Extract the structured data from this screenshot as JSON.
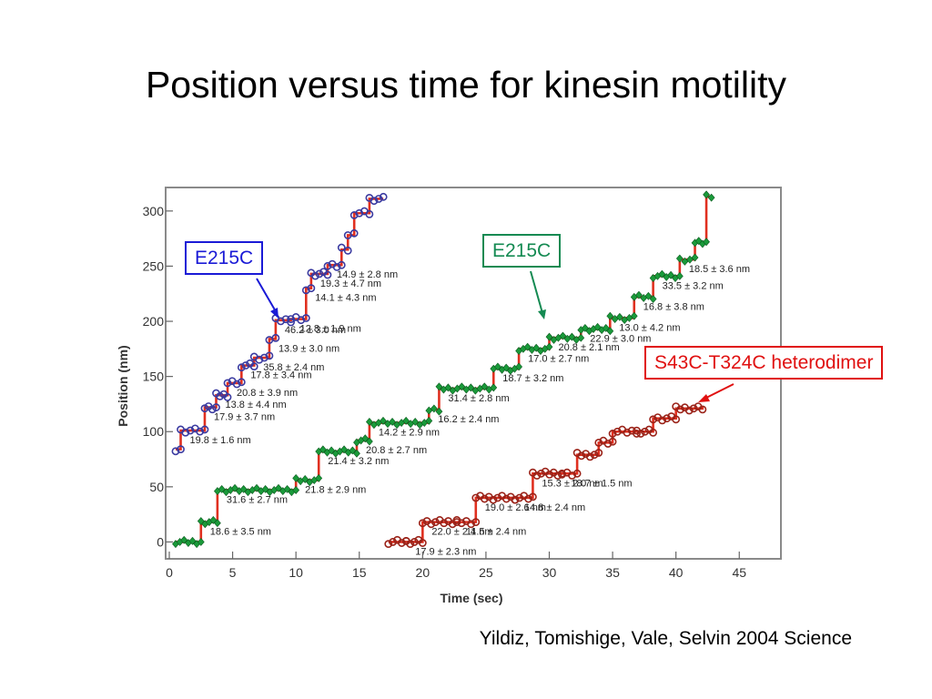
{
  "slide": {
    "title": "Position versus time for kinesin motility",
    "citation": "Yildiz, Tomishige, Vale, Selvin 2004 Science"
  },
  "callouts": [
    {
      "label": "E215C",
      "color": "#1a1ad6"
    },
    {
      "label": "E215C",
      "color": "#148a52"
    },
    {
      "label": "S43C-T324C heterodimer",
      "color": "#e01010"
    }
  ],
  "chart_data": {
    "type": "line",
    "xlabel": "Time (sec)",
    "ylabel": "Position (nm)",
    "xlim": [
      0,
      48
    ],
    "ylim": [
      -12,
      318
    ],
    "xticks": [
      0,
      5,
      10,
      15,
      20,
      25,
      30,
      35,
      40,
      45
    ],
    "yticks": [
      0,
      50,
      100,
      150,
      200,
      250,
      300
    ],
    "grid": false,
    "fit_color": "#e03020",
    "series": [
      {
        "marker": "circle",
        "color": "#3a3aa0",
        "steps": [
          [
            0.5,
            84
          ],
          [
            0.9,
            101
          ],
          [
            2.8,
            122
          ],
          [
            3.7,
            133
          ],
          [
            4.6,
            144
          ],
          [
            5.7,
            160
          ],
          [
            6.7,
            167
          ],
          [
            7.9,
            184
          ],
          [
            8.4,
            201
          ],
          [
            9.6,
            202
          ],
          [
            10.8,
            230
          ],
          [
            11.2,
            243
          ],
          [
            12.5,
            251
          ],
          [
            13.6,
            265
          ],
          [
            14.1,
            278
          ],
          [
            14.6,
            298
          ],
          [
            15.8,
            311
          ],
          [
            16.9,
            311
          ]
        ],
        "step_labels": [
          "19.8 ± 1.6 nm",
          "17.9 ± 3.7 nm",
          "13.8 ± 4.4 nm",
          "20.8 ± 3.9 nm",
          "17.8 ± 3.4 nm",
          "35.8 ± 2.4 nm",
          "13.9 ± 3.0 nm",
          "46.2 ± 3.0 nm",
          "12.8 ± 1.9 nm",
          "14.1 ± 4.3 nm",
          "19.3 ± 4.7 nm",
          "14.9 ± 2.8 nm"
        ]
      },
      {
        "marker": "diamond",
        "color": "#1a9a3a",
        "steps": [
          [
            0.5,
            0
          ],
          [
            2.5,
            18
          ],
          [
            3.8,
            47
          ],
          [
            10.0,
            56
          ],
          [
            11.8,
            82
          ],
          [
            14.8,
            92
          ],
          [
            15.8,
            108
          ],
          [
            20.5,
            120
          ],
          [
            21.3,
            139
          ],
          [
            25.6,
            157
          ],
          [
            27.6,
            175
          ],
          [
            30.0,
            185
          ],
          [
            32.5,
            193
          ],
          [
            34.8,
            203
          ],
          [
            36.7,
            222
          ],
          [
            38.2,
            241
          ],
          [
            40.3,
            256
          ],
          [
            41.5,
            272
          ],
          [
            42.4,
            313
          ],
          [
            42.8,
            313
          ]
        ],
        "step_labels": [
          "18.6 ± 3.5 nm",
          "31.6 ± 2.7 nm",
          "21.8 ± 2.9 nm",
          "21.4 ± 3.2 nm",
          "20.8 ± 2.7 nm",
          "14.2 ± 2.9 nm",
          "16.2 ± 2.4 nm",
          "31.4 ± 2.8 nm",
          "18.7 ± 3.2 nm",
          "17.0 ± 2.7 nm",
          "20.8 ± 2.1 nm",
          "22.9 ± 3.0 nm",
          "13.0 ± 4.2 nm",
          "16.8 ± 3.8 nm",
          "33.5 ± 3.2 nm",
          "18.5 ± 3.6 nm"
        ]
      },
      {
        "marker": "circle",
        "color": "#9a2218",
        "steps": [
          [
            17.3,
            0
          ],
          [
            18.7,
            0
          ],
          [
            20.0,
            18
          ],
          [
            22.7,
            18
          ],
          [
            24.2,
            40
          ],
          [
            27.3,
            40
          ],
          [
            28.7,
            62
          ],
          [
            31.0,
            62
          ],
          [
            32.2,
            79
          ],
          [
            33.9,
            90
          ],
          [
            35.0,
            100
          ],
          [
            36.9,
            100
          ],
          [
            38.2,
            112
          ],
          [
            40.0,
            121
          ],
          [
            42.1,
            123
          ]
        ],
        "step_labels": [
          "17.9 ± 2.3 nm",
          "22.0 ± 2.4 nm",
          "11.5 ± 2.4 nm",
          "19.0 ± 2.6 nm",
          "14.8 ± 2.4 nm",
          "15.3 ± 2.0 nm",
          "18.7 ± 1.5 nm"
        ]
      }
    ]
  }
}
